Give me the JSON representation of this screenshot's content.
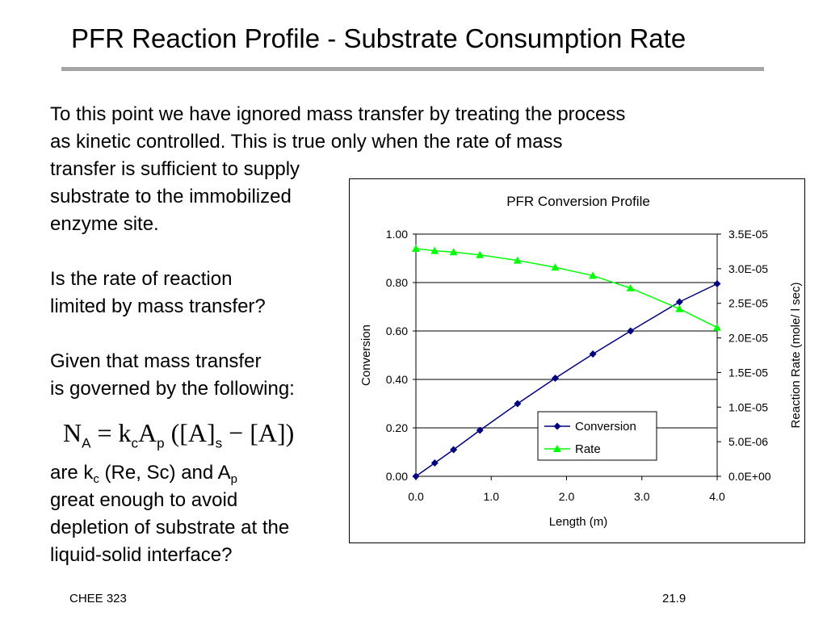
{
  "slide": {
    "title": "PFR Reaction Profile - Substrate Consumption Rate",
    "para1": [
      "To this point we have ignored mass transfer by treating the process",
      "as kinetic controlled.  This is true only when the rate of mass",
      "transfer is sufficient to supply",
      "substrate to the immobilized",
      "enzyme site."
    ],
    "para2": [
      "Is the rate of reaction",
      "limited by mass transfer?"
    ],
    "para3": [
      "Given that mass transfer",
      "is governed by the following:"
    ],
    "equation": {
      "N": "N",
      "N_sub": "A",
      "eq": "=",
      "k": "k",
      "k_sub": "c",
      "A": "A",
      "A_sub": "p",
      "open": "([A]",
      "s_sub": "s",
      "minus": "−",
      "close": "[A])"
    },
    "para4": {
      "line1_pre": "are k",
      "line1_sub1": "c",
      "line1_mid": " (Re, Sc) and A",
      "line1_sub2": "p",
      "lines": [
        "great enough to avoid",
        "depletion of substrate at the",
        "liquid-solid interface?"
      ]
    },
    "footer_left": "CHEE 323",
    "footer_right": "21.9"
  },
  "chart_data": {
    "type": "line",
    "title": "PFR Conversion Profile",
    "xlabel": "Length (m)",
    "ylabel": "Conversion",
    "y2label": "Reaction Rate (mole/ l sec)",
    "xlim": [
      0,
      4
    ],
    "ylim": [
      0,
      1
    ],
    "y2lim": [
      0,
      3.5e-05
    ],
    "xticks": [
      "0.0",
      "1.0",
      "2.0",
      "3.0",
      "4.0"
    ],
    "yticks": [
      "0.00",
      "0.20",
      "0.40",
      "0.60",
      "0.80",
      "1.00"
    ],
    "y2ticks": [
      "0.0E+00",
      "5.0E-06",
      "1.0E-05",
      "1.5E-05",
      "2.0E-05",
      "2.5E-05",
      "3.0E-05",
      "3.5E-05"
    ],
    "grid": true,
    "legend": "bottom-right",
    "series": [
      {
        "name": "Conversion",
        "axis": "left",
        "color": "#000080",
        "marker": "diamond",
        "x": [
          0.0,
          0.25,
          0.5,
          0.85,
          1.35,
          1.85,
          2.35,
          2.85,
          3.5,
          4.0
        ],
        "values": [
          0.0,
          0.055,
          0.11,
          0.19,
          0.3,
          0.405,
          0.505,
          0.6,
          0.72,
          0.795
        ]
      },
      {
        "name": "Rate",
        "axis": "right",
        "color": "#00ff00",
        "marker": "triangle",
        "x": [
          0.0,
          0.25,
          0.5,
          0.85,
          1.35,
          1.85,
          2.35,
          2.85,
          3.5,
          4.0
        ],
        "values": [
          3.29e-05,
          3.26e-05,
          3.24e-05,
          3.2e-05,
          3.12e-05,
          3.02e-05,
          2.9e-05,
          2.72e-05,
          2.42e-05,
          2.15e-05
        ]
      }
    ]
  }
}
